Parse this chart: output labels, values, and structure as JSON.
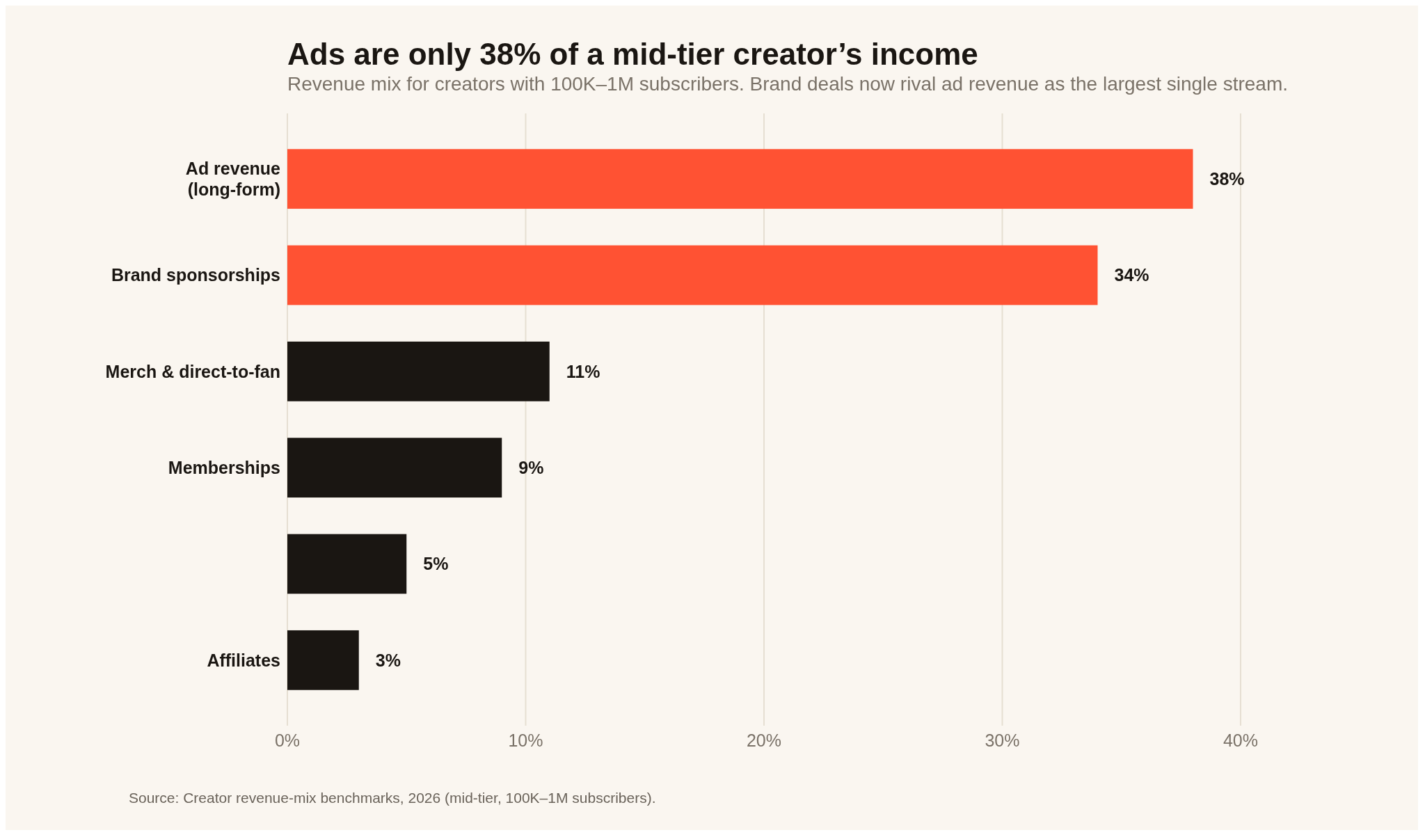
{
  "chart_data": {
    "type": "bar",
    "orientation": "horizontal",
    "title": "Ads are only 38% of a mid-tier creator’s income",
    "subtitle": "Revenue mix for creators with 100K–1M subscribers. Brand deals now rival ad revenue as the largest single stream.",
    "categories": [
      "Ad revenue\n(long-form)",
      "Brand sponsorships",
      "Merch & direct-to-fan",
      "Memberships",
      null,
      "Affiliates"
    ],
    "values": [
      38,
      34,
      11,
      9,
      5,
      3
    ],
    "colors": [
      "#ff5233",
      "#ff5233",
      "#1a1612",
      "#1a1612",
      "#1a1612",
      "#1a1612"
    ],
    "value_labels": [
      "38%",
      "34%",
      "11%",
      "9%",
      "5%",
      "3%"
    ],
    "xlim": [
      0,
      40
    ],
    "xticks": [
      {
        "value": 0,
        "label": "0%"
      },
      {
        "value": 10,
        "label": "10%"
      },
      {
        "value": 20,
        "label": "20%"
      },
      {
        "value": 30,
        "label": "30%"
      },
      {
        "value": 40,
        "label": "40%"
      }
    ],
    "grid": "x",
    "annotations": [
      "Source: Creator revenue-mix benchmarks, 2026 (mid-tier, 100K–1M subscribers)."
    ]
  }
}
